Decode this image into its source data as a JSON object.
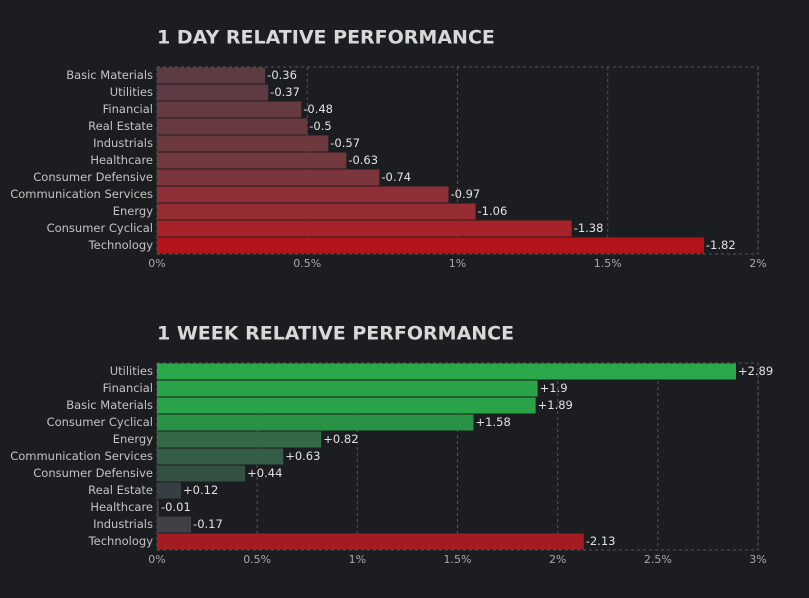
{
  "chart_data": [
    {
      "type": "barh",
      "title": "1 DAY RELATIVE PERFORMANCE",
      "categories": [
        "Basic Materials",
        "Utilities",
        "Financial",
        "Real Estate",
        "Industrials",
        "Healthcare",
        "Consumer Defensive",
        "Communication Services",
        "Energy",
        "Consumer Cyclical",
        "Technology"
      ],
      "values": [
        -0.36,
        -0.37,
        -0.48,
        -0.5,
        -0.57,
        -0.63,
        -0.74,
        -0.97,
        -1.06,
        -1.38,
        -1.82
      ],
      "colors": [
        "#5d3b42",
        "#5e3b42",
        "#653a41",
        "#683a40",
        "#6c393f",
        "#71383e",
        "#7b353c",
        "#8e2f37",
        "#962c34",
        "#a8222a",
        "#b3141a"
      ],
      "xlim": [
        0,
        2
      ],
      "xticks": [
        {
          "value": 0,
          "label": "0%"
        },
        {
          "value": 0.5,
          "label": "0.5%"
        },
        {
          "value": 1,
          "label": "1%"
        },
        {
          "value": 1.5,
          "label": "1.5%"
        },
        {
          "value": 2,
          "label": "2%"
        }
      ],
      "grid": true
    },
    {
      "type": "barh",
      "title": "1 WEEK RELATIVE PERFORMANCE",
      "categories": [
        "Utilities",
        "Financial",
        "Basic Materials",
        "Consumer Cyclical",
        "Energy",
        "Communication Services",
        "Consumer Defensive",
        "Real Estate",
        "Healthcare",
        "Industrials",
        "Technology"
      ],
      "values": [
        2.89,
        1.9,
        1.89,
        1.58,
        0.82,
        0.63,
        0.44,
        0.12,
        -0.01,
        -0.17,
        -2.13
      ],
      "value_labels": [
        "+2.89",
        "+1.9",
        "+1.89",
        "+1.58",
        "+0.82",
        "+0.63",
        "+0.44",
        "+0.12",
        "-0.01",
        "-0.17",
        "-2.13"
      ],
      "colors": [
        "#2aa84a",
        "#29a348",
        "#29a348",
        "#2a9245",
        "#336a45",
        "#355c44",
        "#345042",
        "#364044",
        "#3a3c40",
        "#404146",
        "#a21c22"
      ],
      "xlim": [
        0,
        3
      ],
      "xticks": [
        {
          "value": 0,
          "label": "0%"
        },
        {
          "value": 0.5,
          "label": "0.5%"
        },
        {
          "value": 1,
          "label": "1%"
        },
        {
          "value": 1.5,
          "label": "1.5%"
        },
        {
          "value": 2,
          "label": "2%"
        },
        {
          "value": 2.5,
          "label": "2.5%"
        },
        {
          "value": 3,
          "label": "3%"
        }
      ],
      "grid": true
    }
  ]
}
